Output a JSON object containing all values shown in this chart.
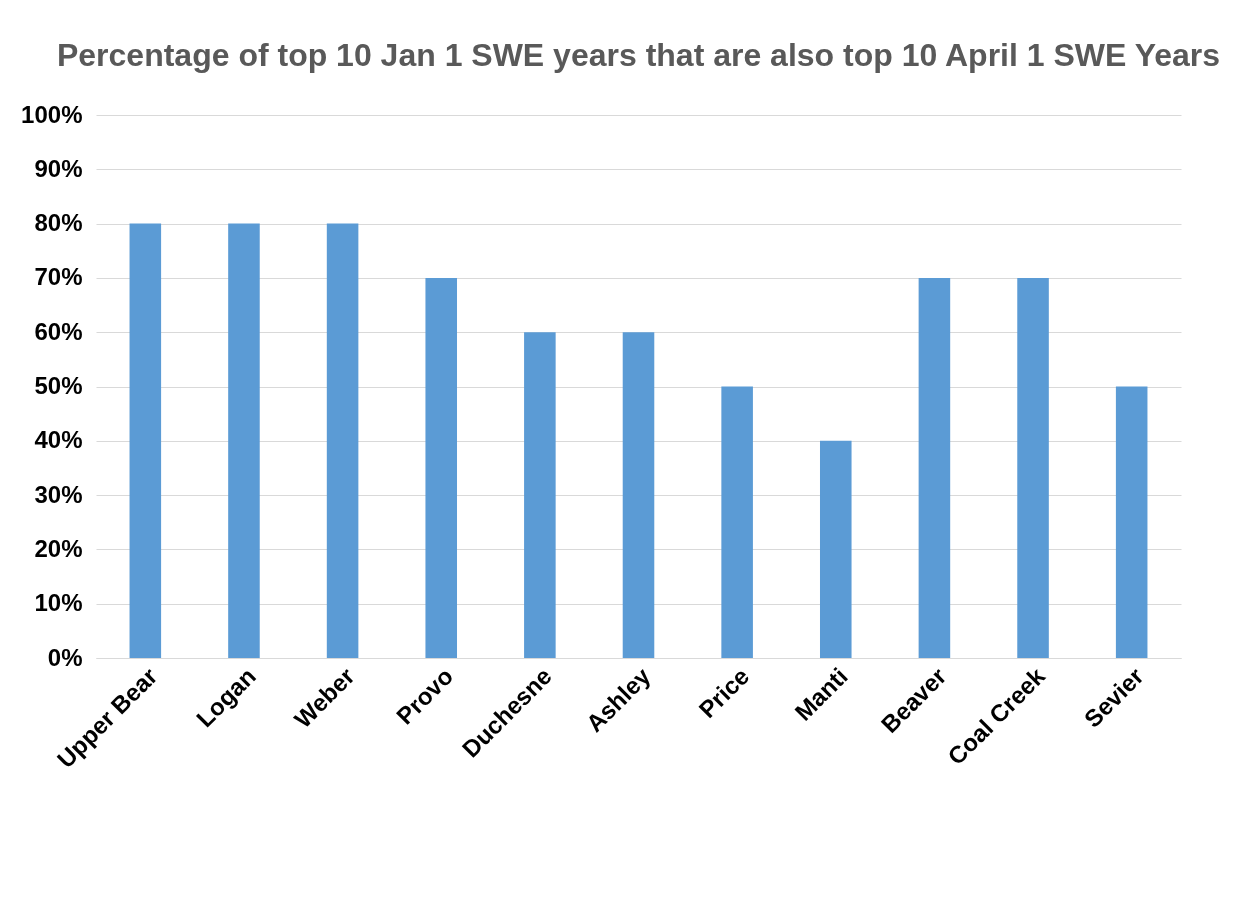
{
  "chart_data": {
    "type": "bar",
    "title": "Percentage of top 10 Jan 1 SWE years that are also top\n10 April 1 SWE Years",
    "categories": [
      "Upper Bear",
      "Logan",
      "Weber",
      "Provo",
      "Duchesne",
      "Ashley",
      "Price",
      "Manti",
      "Beaver",
      "Coal Creek",
      "Sevier"
    ],
    "values": [
      80,
      80,
      80,
      70,
      60,
      60,
      50,
      40,
      70,
      70,
      50
    ],
    "color": "#5b9bd5",
    "ylim": [
      0,
      100
    ],
    "yticks": [
      {
        "value": 0,
        "label": "0%"
      },
      {
        "value": 10,
        "label": "10%"
      },
      {
        "value": 20,
        "label": "20%"
      },
      {
        "value": 30,
        "label": "30%"
      },
      {
        "value": 40,
        "label": "40%"
      },
      {
        "value": 50,
        "label": "50%"
      },
      {
        "value": 60,
        "label": "60%"
      },
      {
        "value": 70,
        "label": "70%"
      },
      {
        "value": 80,
        "label": "80%"
      },
      {
        "value": 90,
        "label": "90%"
      },
      {
        "value": 100,
        "label": "100%"
      }
    ],
    "grid": "y"
  }
}
